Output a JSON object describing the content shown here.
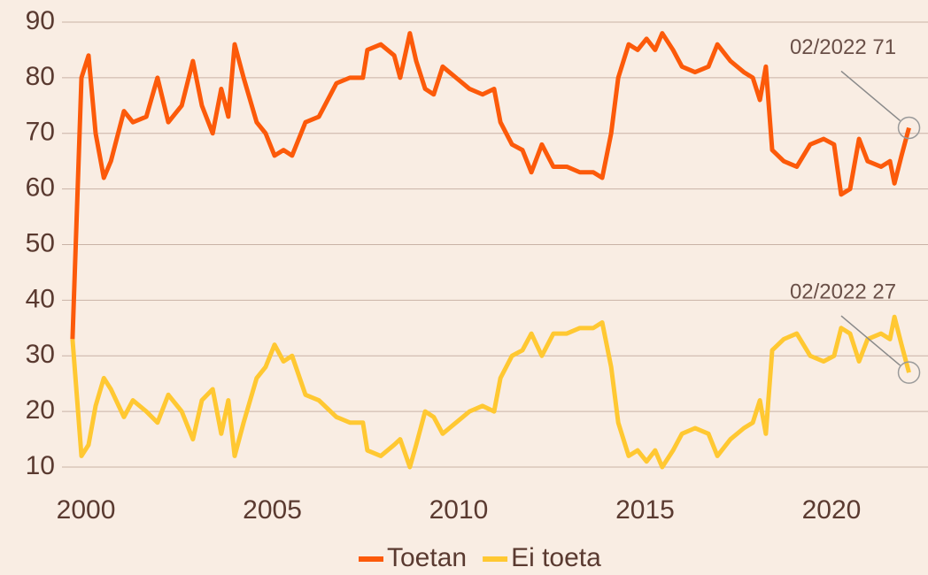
{
  "chart_data": {
    "type": "line",
    "x": [
      1999.64,
      1999.88,
      2000.07,
      2000.26,
      2000.48,
      2000.67,
      2001.02,
      2001.26,
      2001.62,
      2001.92,
      2002.21,
      2002.57,
      2002.87,
      2003.11,
      2003.4,
      2003.63,
      2003.82,
      2003.99,
      2004.23,
      2004.58,
      2004.82,
      2005.06,
      2005.3,
      2005.53,
      2005.89,
      2006.25,
      2006.72,
      2007.08,
      2007.43,
      2007.55,
      2007.91,
      2008.27,
      2008.43,
      2008.69,
      2008.86,
      2009.1,
      2009.33,
      2009.57,
      2009.93,
      2010.29,
      2010.64,
      2010.95,
      2011.12,
      2011.43,
      2011.71,
      2011.95,
      2012.23,
      2012.54,
      2012.9,
      2013.25,
      2013.61,
      2013.85,
      2014.09,
      2014.28,
      2014.56,
      2014.8,
      2015.04,
      2015.27,
      2015.46,
      2015.75,
      2015.99,
      2016.34,
      2016.7,
      2016.94,
      2017.29,
      2017.65,
      2017.89,
      2018.08,
      2018.24,
      2018.41,
      2018.72,
      2019.07,
      2019.43,
      2019.79,
      2020.07,
      2020.26,
      2020.5,
      2020.74,
      2020.97,
      2021.33,
      2021.57,
      2021.69,
      2021.88,
      2022.08
    ],
    "series": [
      {
        "name": "Toetan",
        "color": "#fc5a0a",
        "values": [
          33,
          80,
          84,
          70,
          62,
          65,
          74,
          72,
          73,
          80,
          72,
          75,
          83,
          75,
          70,
          78,
          73,
          86,
          80,
          72,
          70,
          66,
          67,
          66,
          72,
          73,
          79,
          80,
          80,
          85,
          86,
          84,
          80,
          88,
          83,
          78,
          77,
          82,
          80,
          78,
          77,
          78,
          72,
          68,
          67,
          63,
          68,
          64,
          64,
          63,
          63,
          62,
          70,
          80,
          86,
          85,
          87,
          85,
          88,
          85,
          82,
          81,
          82,
          86,
          83,
          81,
          80,
          76,
          82,
          67,
          65,
          64,
          68,
          69,
          68,
          59,
          60,
          69,
          65,
          64,
          65,
          61,
          66,
          71
        ]
      },
      {
        "name": "Ei toeta",
        "color": "#ffc832",
        "values": [
          33,
          12,
          14,
          21,
          26,
          24,
          19,
          22,
          20,
          18,
          23,
          20,
          15,
          22,
          24,
          16,
          22,
          12,
          18,
          26,
          28,
          32,
          29,
          30,
          23,
          22,
          19,
          18,
          18,
          13,
          12,
          14,
          15,
          10,
          14,
          20,
          19,
          16,
          18,
          20,
          21,
          20,
          26,
          30,
          31,
          34,
          30,
          34,
          34,
          35,
          35,
          36,
          28,
          18,
          12,
          13,
          11,
          13,
          10,
          13,
          16,
          17,
          16,
          12,
          15,
          17,
          18,
          22,
          16,
          31,
          33,
          34,
          30,
          29,
          30,
          35,
          34,
          29,
          33,
          34,
          33,
          37,
          32,
          27
        ]
      }
    ],
    "xlim": [
      1999.5,
      2022.4
    ],
    "xticks": [
      2000,
      2005,
      2010,
      2015,
      2020
    ],
    "ylim": [
      10,
      90
    ],
    "yticks": [
      10,
      20,
      30,
      40,
      50,
      60,
      70,
      80,
      90
    ],
    "grid": true,
    "annotations": [
      {
        "text": "02/2022 71"
      },
      {
        "text": "02/2022 27"
      }
    ]
  }
}
